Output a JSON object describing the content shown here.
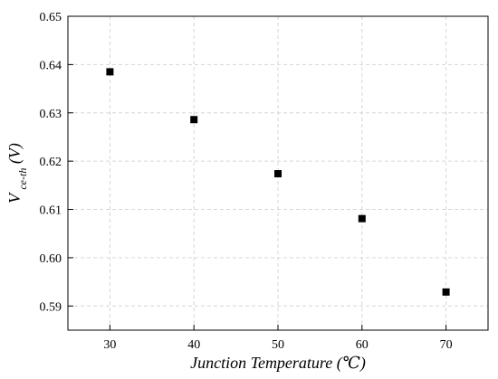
{
  "chart_data": {
    "type": "scatter",
    "title": "",
    "xlabel": "Junction Temperature (℃)",
    "ylabel": {
      "main": "V",
      "subscript": "ce-th",
      "unit": " (V)"
    },
    "xlim": [
      25,
      75
    ],
    "ylim": [
      0.585,
      0.65
    ],
    "x_ticks": [
      "30",
      "40",
      "50",
      "60",
      "70"
    ],
    "y_ticks": [
      "0.59",
      "0.60",
      "0.61",
      "0.62",
      "0.63",
      "0.64",
      "0.65"
    ],
    "grid": true,
    "legend": "none",
    "marker": "square",
    "marker_color": "#000000",
    "points": [
      {
        "x": 30,
        "y": 0.6385
      },
      {
        "x": 40,
        "y": 0.6286
      },
      {
        "x": 50,
        "y": 0.6174
      },
      {
        "x": 60,
        "y": 0.6081
      },
      {
        "x": 70,
        "y": 0.5929
      }
    ]
  }
}
